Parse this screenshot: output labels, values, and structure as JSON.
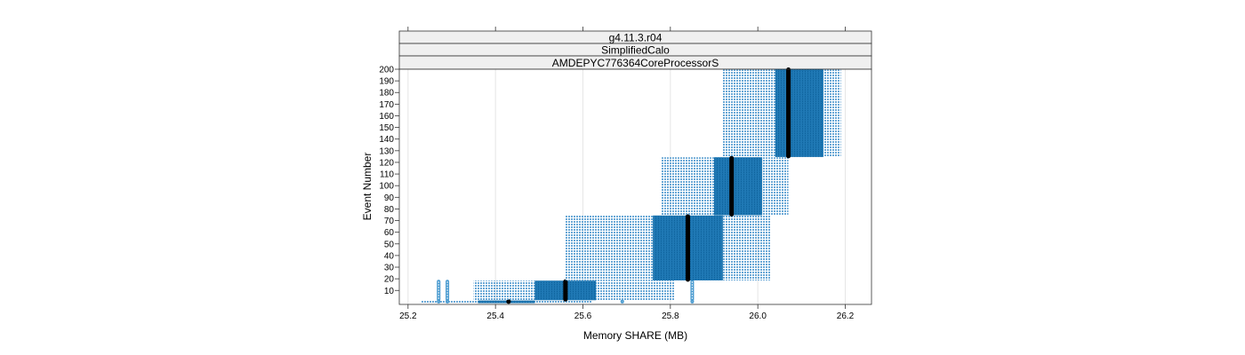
{
  "chart_data": {
    "type": "boxplot",
    "strips": [
      "g4.11.3.r04",
      "SimplifiedCalo",
      "AMDEPYC776364CoreProcessorS"
    ],
    "xlabel": "Memory SHARE (MB)",
    "ylabel": "Event Number",
    "xlim": [
      25.18,
      26.26
    ],
    "ylim": [
      -2,
      200
    ],
    "x_ticks": [
      "25.2",
      "25.4",
      "25.6",
      "25.8",
      "26.0",
      "26.2"
    ],
    "y_ticks": [
      "10",
      "20",
      "30",
      "40",
      "50",
      "60",
      "70",
      "80",
      "90",
      "100",
      "110",
      "120",
      "130",
      "140",
      "150",
      "160",
      "170",
      "180",
      "190",
      "200"
    ],
    "grid": true,
    "groups": [
      {
        "y_range": [
          0,
          1
        ],
        "whisker_low": 25.23,
        "q1": 25.36,
        "median": 25.43,
        "q3": 25.49,
        "whisker_high": 25.62,
        "outliers": [
          25.27,
          25.29,
          25.69,
          25.85
        ]
      },
      {
        "y_range": [
          2,
          18
        ],
        "whisker_low": 25.35,
        "q1": 25.49,
        "median": 25.56,
        "q3": 25.63,
        "whisker_high": 25.81,
        "outliers": [
          25.27,
          25.29,
          25.85
        ]
      },
      {
        "y_range": [
          19,
          74
        ],
        "whisker_low": 25.56,
        "q1": 25.76,
        "median": 25.84,
        "q3": 25.92,
        "whisker_high": 26.03,
        "outliers": []
      },
      {
        "y_range": [
          75,
          124
        ],
        "whisker_low": 25.78,
        "q1": 25.9,
        "median": 25.94,
        "q3": 26.01,
        "whisker_high": 26.07,
        "outliers": []
      },
      {
        "y_range": [
          125,
          200
        ],
        "whisker_low": 25.92,
        "q1": 26.04,
        "median": 26.07,
        "q3": 26.15,
        "whisker_high": 26.19,
        "outliers": []
      }
    ]
  }
}
